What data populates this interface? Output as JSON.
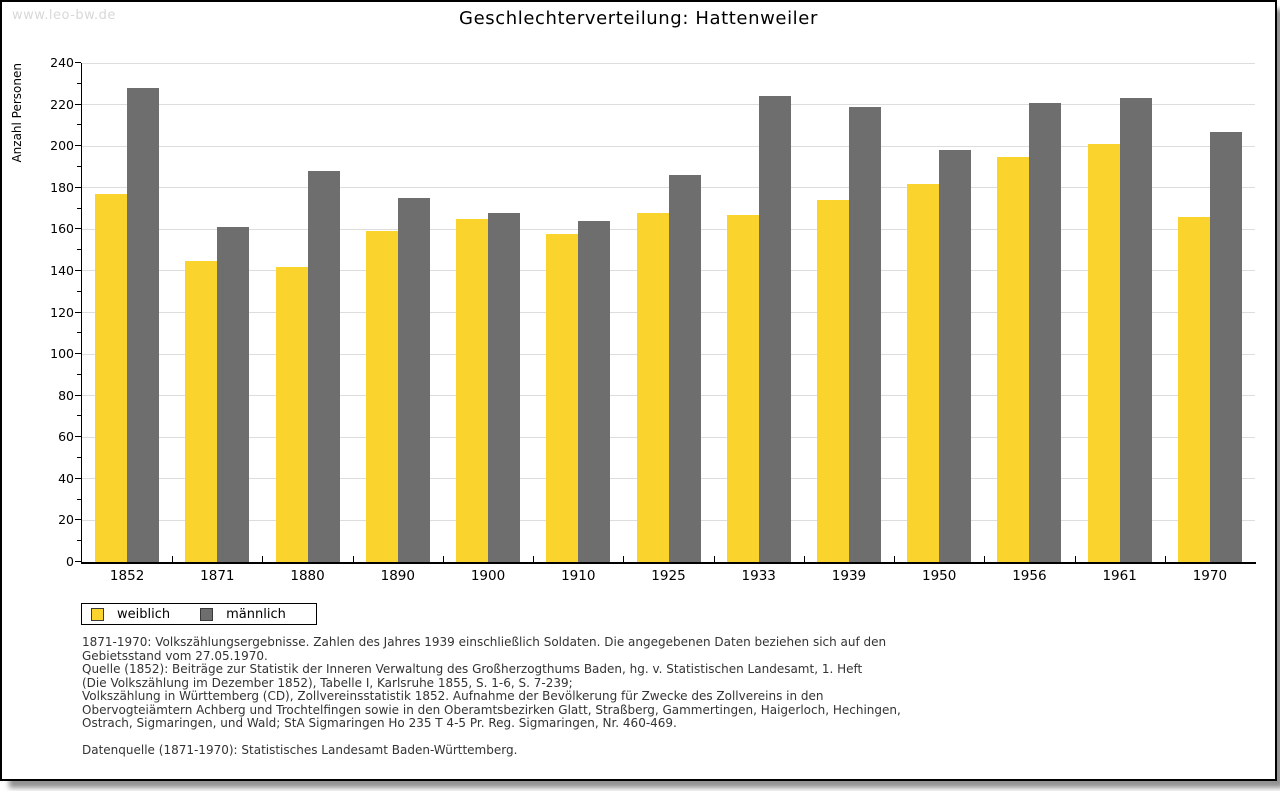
{
  "watermark": "www.leo-bw.de",
  "title": "Geschlechterverteilung: Hattenweiler",
  "chart_data": {
    "type": "bar",
    "title": "Geschlechterverteilung: Hattenweiler",
    "xlabel": "",
    "ylabel": "Anzahl Personen",
    "ylim": [
      0,
      240
    ],
    "ytick_step": 20,
    "y_minor_tick_step": 10,
    "grid": true,
    "legend_position": "bottom-left",
    "categories": [
      "1852",
      "1871",
      "1880",
      "1890",
      "1900",
      "1910",
      "1925",
      "1933",
      "1939",
      "1950",
      "1956",
      "1961",
      "1970"
    ],
    "series": [
      {
        "name": "weiblich",
        "color": "#FBD32D",
        "values": [
          177,
          145,
          142,
          159,
          165,
          158,
          168,
          167,
          174,
          182,
          195,
          201,
          166
        ]
      },
      {
        "name": "männlich",
        "color": "#6E6E6E",
        "values": [
          228,
          161,
          188,
          175,
          168,
          164,
          186,
          224,
          219,
          198,
          221,
          223,
          207
        ]
      }
    ]
  },
  "legend": {
    "items": [
      {
        "label": "weiblich",
        "color": "#FBD32D"
      },
      {
        "label": "männlich",
        "color": "#6E6E6E"
      }
    ]
  },
  "footnotes": {
    "lines": [
      "1871-1970: Volkszählungsergebnisse. Zahlen des Jahres 1939 einschließlich Soldaten. Die angegebenen Daten beziehen sich auf den",
      "Gebietsstand vom 27.05.1970.",
      "Quelle (1852): Beiträge zur Statistik der Inneren Verwaltung des Großherzogthums Baden, hg. v. Statistischen Landesamt, 1. Heft",
      "(Die Volkszählung im Dezember 1852), Tabelle I, Karlsruhe 1855, S. 1-6, S. 7-239;",
      "Volkszählung in Württemberg (CD), Zollvereinsstatistik 1852. Aufnahme der Bevölkerung für Zwecke des Zollvereins in den",
      "Obervogteiämtern Achberg und Trochtelfingen sowie in den Oberamtsbezirken Glatt, Straßberg, Gammertingen, Haigerloch, Hechingen,",
      "Ostrach, Sigmaringen, und Wald; StA Sigmaringen Ho 235 T 4-5 Pr. Reg. Sigmaringen, Nr. 460-469."
    ],
    "datasource": "Datenquelle (1871-1970): Statistisches Landesamt Baden-Württemberg."
  },
  "colors": {
    "bar_weiblich": "#FBD32D",
    "bar_männlich": "#6E6E6E",
    "gridline": "#DDDDDD",
    "axis": "#000000",
    "watermark_text": "#D8D8D8",
    "footnote_text": "#333333",
    "card_border": "#000000",
    "background": "#FFFFFF"
  }
}
